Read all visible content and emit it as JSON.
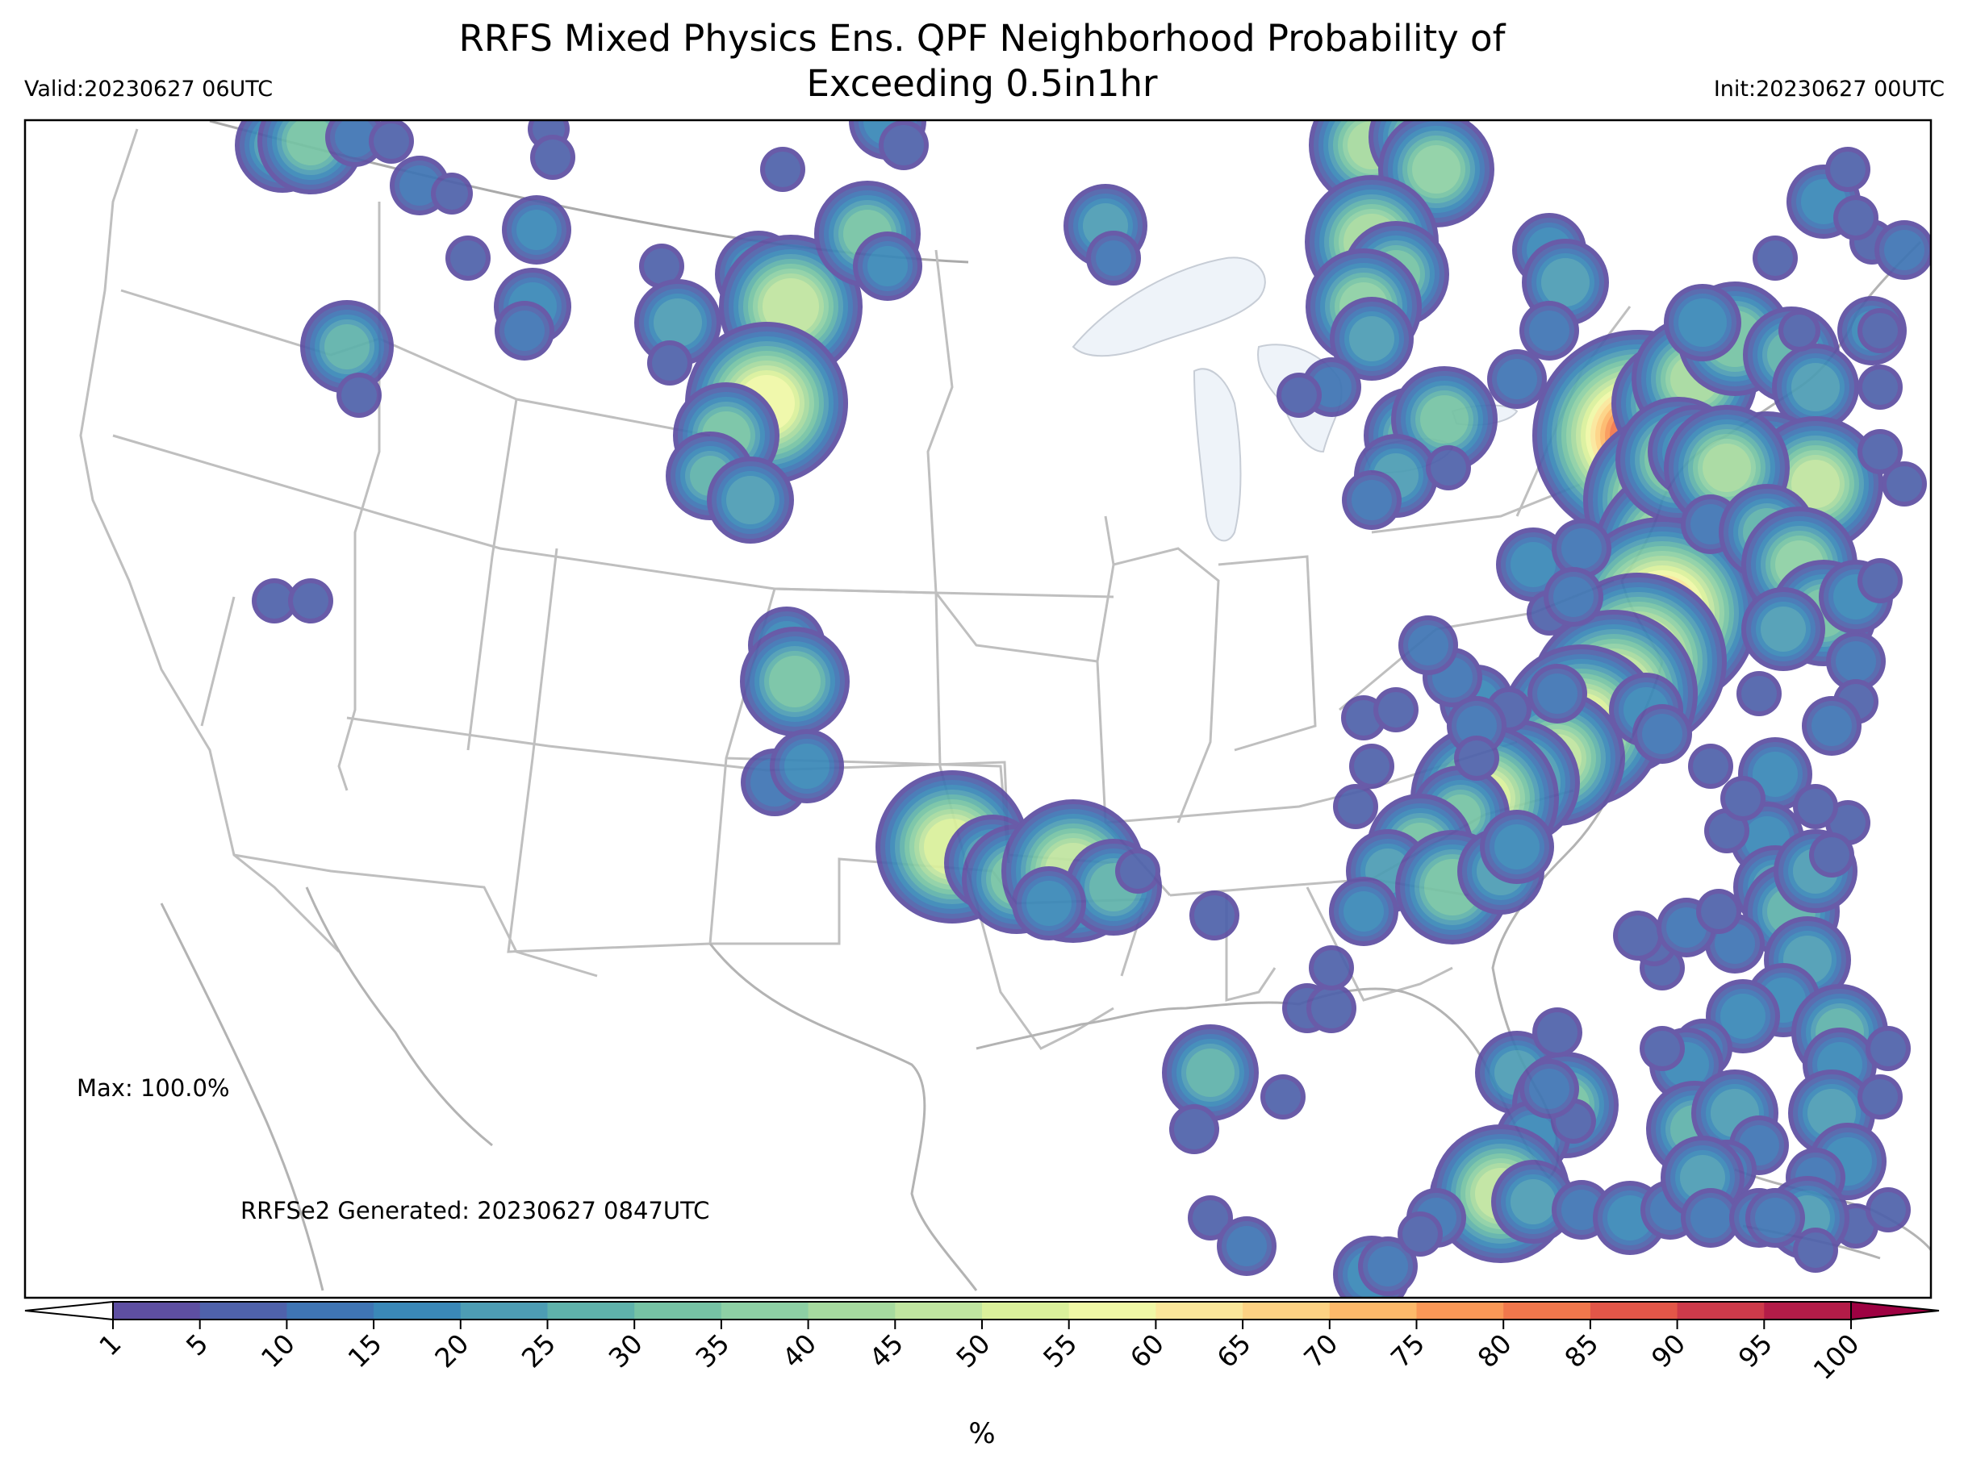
{
  "title_line1": "RRFS Mixed Physics Ens. QPF Neighborhood Probability of",
  "title_line2": "Exceeding 0.5in1hr",
  "valid": "Valid:20230627 06UTC",
  "init": "Init:20230627 00UTC",
  "max_label": "Max: 100.0%",
  "generated": "RRFSe2 Generated: 20230627 0847UTC",
  "units": "%",
  "colorbar": {
    "ticks": [
      "1",
      "5",
      "10",
      "15",
      "20",
      "25",
      "30",
      "35",
      "40",
      "45",
      "50",
      "55",
      "60",
      "65",
      "70",
      "75",
      "80",
      "85",
      "90",
      "95",
      "100"
    ],
    "colors": [
      "#5e4fa2",
      "#4f62ab",
      "#3f75b4",
      "#3a88b8",
      "#4d9db4",
      "#5fb2ab",
      "#76c3a4",
      "#8dd0a4",
      "#a6da9f",
      "#c0e5a0",
      "#daf09b",
      "#eff8a6",
      "#fae79a",
      "#fdd283",
      "#fdb96a",
      "#fa9857",
      "#f1774c",
      "#e25648",
      "#cd3a4a",
      "#b31c48",
      "#9e0142"
    ]
  },
  "map": {
    "region": "CONUS",
    "projection": "Lambert conformal",
    "max_probability_percent": 100.0
  }
}
